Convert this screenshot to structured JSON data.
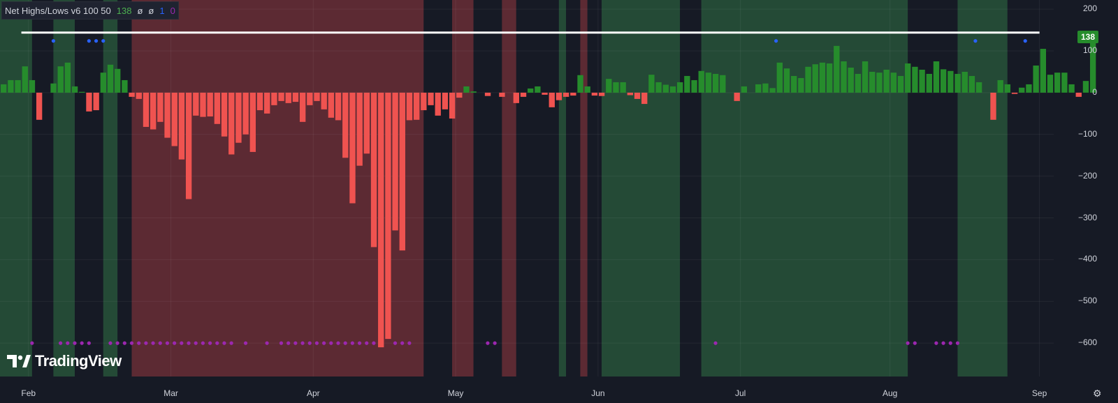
{
  "indicator": {
    "name": "Net Highs/Lows v6 100 50",
    "values": [
      "138",
      "ø",
      "ø",
      "1",
      "0"
    ]
  },
  "last_value_badge": "138",
  "logo_text": "TradingView",
  "settings_icon": "gear-icon",
  "colors": {
    "background": "#161a25",
    "positive_bar": "#268c2c",
    "negative_bar": "#ef5350",
    "green_zone": "#244a36",
    "red_zone": "#5c2a33",
    "blue_dot": "#2962ff",
    "purple_dot": "#9c27b0",
    "threshold_line": "#ffffff"
  },
  "chart_data": {
    "type": "bar",
    "title": "Net Highs/Lows v6 100 50",
    "y_ticks": [
      200,
      100,
      0,
      -100,
      -200,
      -300,
      -400,
      -500,
      -600
    ],
    "ylim": [
      -680,
      222
    ],
    "x_ticks": [
      "Feb",
      "Mar",
      "Apr",
      "May",
      "Jun",
      "Jul",
      "Aug",
      "Sep"
    ],
    "x_tick_index": [
      4,
      24,
      44,
      64,
      84,
      104,
      125,
      146
    ],
    "xlim": [
      0,
      148
    ],
    "threshold_line": 144,
    "values": [
      20,
      30,
      30,
      63,
      30,
      -65,
      0,
      22,
      63,
      72,
      15,
      2,
      -45,
      -42,
      48,
      67,
      57,
      30,
      -10,
      -15,
      -82,
      -88,
      -70,
      -108,
      -128,
      -160,
      -255,
      -55,
      -58,
      -57,
      -75,
      -105,
      -148,
      -120,
      -100,
      -142,
      -42,
      -50,
      -30,
      -20,
      -25,
      -22,
      -70,
      -30,
      -20,
      -40,
      -60,
      -66,
      -156,
      -265,
      -175,
      -146,
      -370,
      -610,
      -590,
      -330,
      -378,
      -66,
      -65,
      -42,
      -30,
      -55,
      -40,
      -62,
      -12,
      15,
      3,
      0,
      -8,
      0,
      -10,
      0,
      -25,
      -10,
      10,
      15,
      -5,
      -35,
      -18,
      -10,
      -7,
      42,
      15,
      -7,
      -8,
      33,
      25,
      25,
      -6,
      -15,
      -27,
      43,
      25,
      19,
      15,
      25,
      40,
      30,
      52,
      48,
      45,
      42,
      0,
      -20,
      15,
      0,
      20,
      22,
      11,
      72,
      58,
      40,
      35,
      62,
      68,
      72,
      70,
      112,
      75,
      60,
      45,
      75,
      50,
      48,
      55,
      48,
      40,
      70,
      62,
      55,
      45,
      75,
      56,
      52,
      45,
      50,
      40,
      25,
      0,
      -65,
      30,
      20,
      -3,
      12,
      20,
      65,
      105,
      43,
      48,
      48,
      20,
      -10,
      28,
      138
    ],
    "blue_dots_x": [
      7.5,
      12.5,
      13.5,
      14.5,
      109,
      137,
      144
    ],
    "blue_dot_level": 124,
    "purple_dots_x": [
      4.5,
      8.5,
      9.5,
      10.5,
      11.5,
      12.5,
      15.5,
      16.5,
      17.5,
      18.5,
      19.5,
      20.5,
      21.5,
      22.5,
      23.5,
      24.5,
      25.5,
      26.5,
      27.5,
      28.5,
      29.5,
      30.5,
      31.5,
      32.5,
      34.5,
      37.5,
      39.5,
      40.5,
      41.5,
      42.5,
      43.5,
      44.5,
      45.5,
      46.5,
      47.5,
      48.5,
      49.5,
      50.5,
      51.5,
      52.5,
      55.5,
      56.5,
      57.5,
      68.5,
      69.5,
      100.5,
      127.5,
      128.5,
      131.5,
      132.5,
      133.5,
      134.5
    ],
    "purple_dot_level": -600,
    "green_zones": [
      [
        0,
        4.5
      ],
      [
        7.5,
        10.5
      ],
      [
        14.5,
        16.5
      ],
      [
        78.5,
        79.5
      ],
      [
        84.5,
        95.5
      ],
      [
        98.5,
        127.5
      ],
      [
        134.5,
        141.5
      ]
    ],
    "red_zones": [
      [
        18.5,
        59.5
      ],
      [
        63.5,
        66.5
      ],
      [
        70.5,
        72.5
      ],
      [
        81.5,
        82.5
      ]
    ]
  }
}
